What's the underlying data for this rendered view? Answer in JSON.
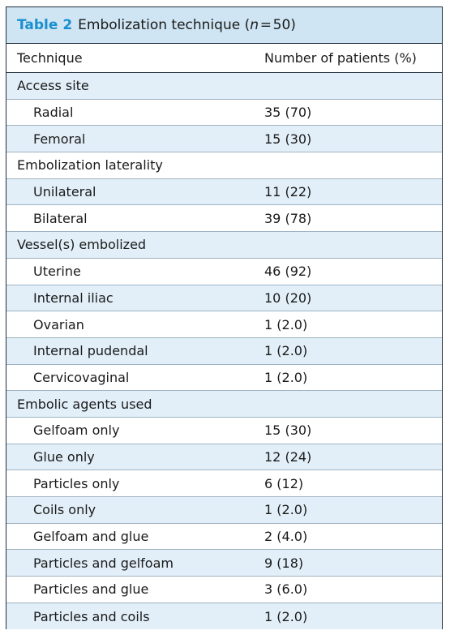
{
  "caption": {
    "label": "Table 2",
    "title_pre": "Embolization technique (",
    "n_symbol": "n",
    "title_post": " = 50)"
  },
  "header": {
    "col1": "Technique",
    "col2": "Number of patients (%)"
  },
  "rows": [
    {
      "label": "Access site",
      "value": "",
      "type": "section"
    },
    {
      "label": "Radial",
      "value": "35 (70)",
      "type": "sub"
    },
    {
      "label": "Femoral",
      "value": "15 (30)",
      "type": "sub"
    },
    {
      "label": "Embolization laterality",
      "value": "",
      "type": "section"
    },
    {
      "label": "Unilateral",
      "value": "11 (22)",
      "type": "sub"
    },
    {
      "label": "Bilateral",
      "value": "39 (78)",
      "type": "sub"
    },
    {
      "label": "Vessel(s) embolized",
      "value": "",
      "type": "section"
    },
    {
      "label": "Uterine",
      "value": "46 (92)",
      "type": "sub"
    },
    {
      "label": "Internal iliac",
      "value": "10 (20)",
      "type": "sub"
    },
    {
      "label": "Ovarian",
      "value": "1 (2.0)",
      "type": "sub"
    },
    {
      "label": "Internal pudendal",
      "value": "1 (2.0)",
      "type": "sub"
    },
    {
      "label": "Cervicovaginal",
      "value": "1 (2.0)",
      "type": "sub"
    },
    {
      "label": "Embolic agents used",
      "value": "",
      "type": "section"
    },
    {
      "label": "Gelfoam only",
      "value": "15 (30)",
      "type": "sub"
    },
    {
      "label": "Glue only",
      "value": "12 (24)",
      "type": "sub"
    },
    {
      "label": "Particles only",
      "value": "6 (12)",
      "type": "sub"
    },
    {
      "label": "Coils only",
      "value": "1 (2.0)",
      "type": "sub"
    },
    {
      "label": "Gelfoam and glue",
      "value": "2 (4.0)",
      "type": "sub"
    },
    {
      "label": "Particles and gelfoam",
      "value": "9 (18)",
      "type": "sub"
    },
    {
      "label": "Particles and glue",
      "value": "3 (6.0)",
      "type": "sub"
    },
    {
      "label": "Particles and coils",
      "value": "1 (2.0)",
      "type": "sub"
    }
  ],
  "colors": {
    "caption_bg": "#cfe5f3",
    "label_blue": "#1a8fd0",
    "row_shade": "#e2eff8"
  }
}
